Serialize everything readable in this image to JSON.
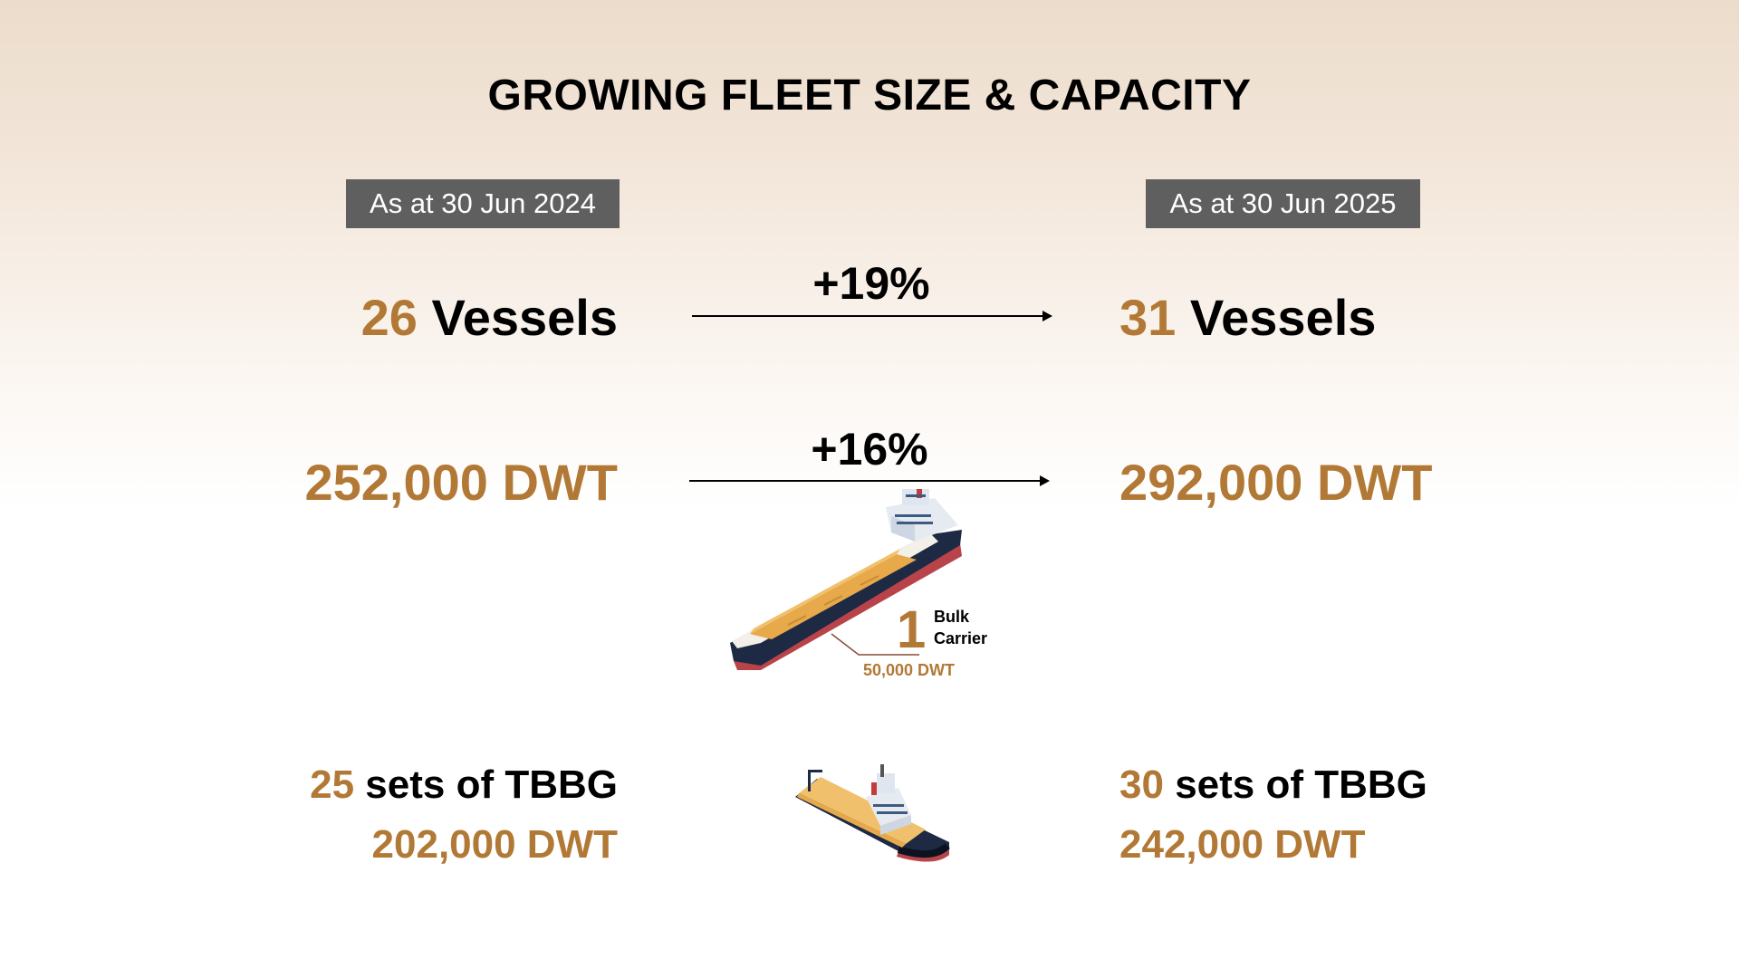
{
  "title": "GROWING FLEET SIZE & CAPACITY",
  "left": {
    "date": "As at 30 Jun 2024",
    "vessels_count": "26",
    "vessels_label": "Vessels",
    "dwt_total": "252,000 DWT",
    "tbbg_count": "25",
    "tbbg_label": "sets of TBBG",
    "tbbg_dwt": "202,000 DWT"
  },
  "right": {
    "date": "As at 30 Jun 2025",
    "vessels_count": "31",
    "vessels_label": "Vessels",
    "dwt_total": "292,000 DWT",
    "tbbg_count": "30",
    "tbbg_label": "sets of TBBG",
    "tbbg_dwt": "242,000 DWT"
  },
  "growth": {
    "vessels": "+19%",
    "dwt": "+16%"
  },
  "bulk_carrier": {
    "count": "1",
    "label_line1": "Bulk",
    "label_line2": "Carrier",
    "dwt": "50,000 DWT"
  },
  "icons": [
    "bulk-carrier-ship-icon",
    "tugboat-icon"
  ],
  "colors": {
    "accent": "#b17935",
    "badge": "#5f5f5f",
    "text": "#000000"
  }
}
